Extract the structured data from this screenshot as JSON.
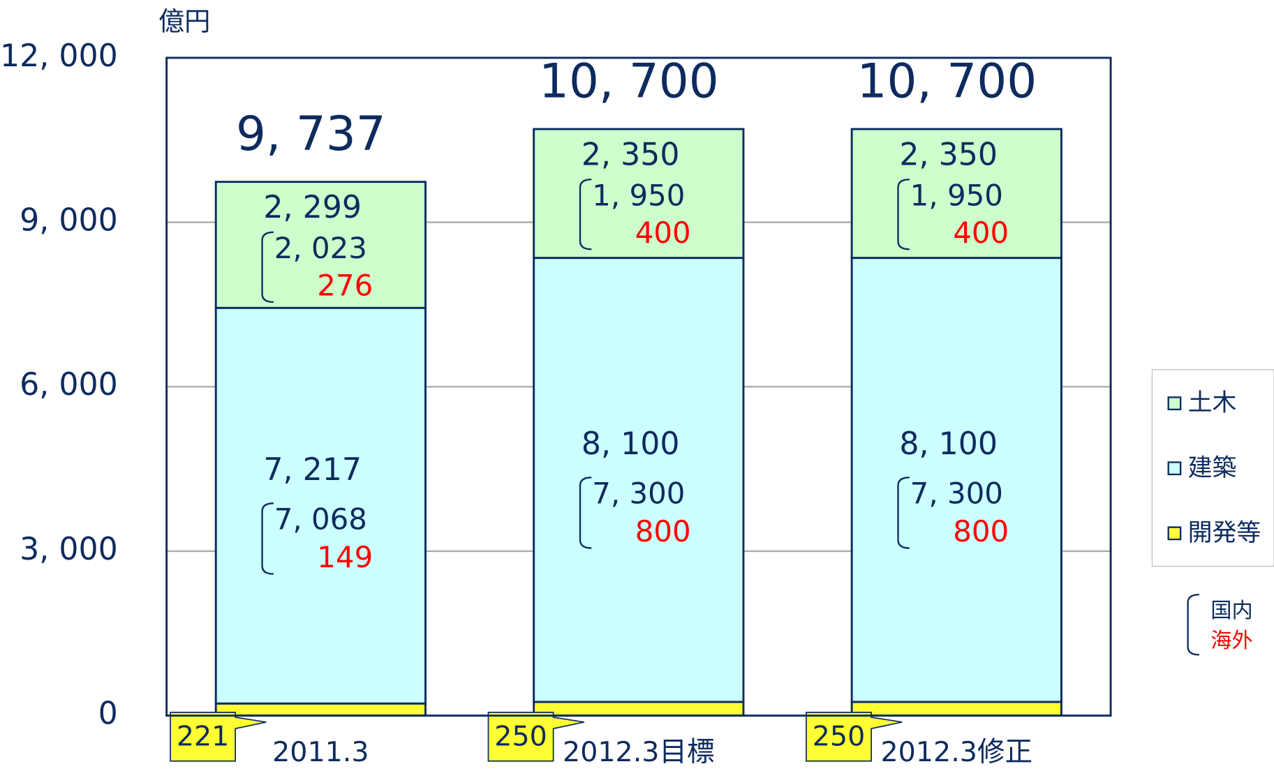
{
  "chart_data": {
    "type": "stacked_bar",
    "y_axis_label": "億円",
    "categories": [
      "2011.3",
      "2012.3目標",
      "2012.3修正"
    ],
    "ylim": [
      0,
      12000
    ],
    "yticks": [
      0,
      {
        "value": 3000,
        "label": "3, 000"
      },
      {
        "value": 6000,
        "label": "6, 000"
      },
      {
        "value": 9000,
        "label": "9, 000"
      },
      {
        "value": 12000,
        "label": "12, 000"
      }
    ],
    "grid": true,
    "series": [
      {
        "name": "開発等",
        "color": "#ffff33",
        "values": [
          221,
          250,
          250
        ]
      },
      {
        "name": "建築",
        "color": "#ccffff",
        "values": [
          7217,
          8100,
          8100
        ],
        "value_labels": [
          "7, 217",
          "8, 100",
          "8, 100"
        ]
      },
      {
        "name": "土木",
        "color": "#ccffcc",
        "values": [
          2299,
          2350,
          2350
        ],
        "value_labels": [
          "2, 299",
          "2, 350",
          "2, 350"
        ]
      }
    ],
    "totals": [
      9737,
      10700,
      10700
    ],
    "total_labels": [
      "9, 737",
      "10, 700",
      "10, 700"
    ],
    "breakdown": [
      {
        "name": "国内",
        "color": "#0d2b5e",
        "土木": [
          2023,
          1950,
          1950
        ],
        "土木_labels": [
          "2, 023",
          "1, 950",
          "1, 950"
        ],
        "建築": [
          7068,
          7300,
          7300
        ],
        "建築_labels": [
          "7, 068",
          "7, 300",
          "7, 300"
        ]
      },
      {
        "name": "海外",
        "color": "#ff0000",
        "土木": [
          276,
          400,
          400
        ],
        "建築": [
          149,
          800,
          800
        ]
      }
    ],
    "legend": "right"
  }
}
